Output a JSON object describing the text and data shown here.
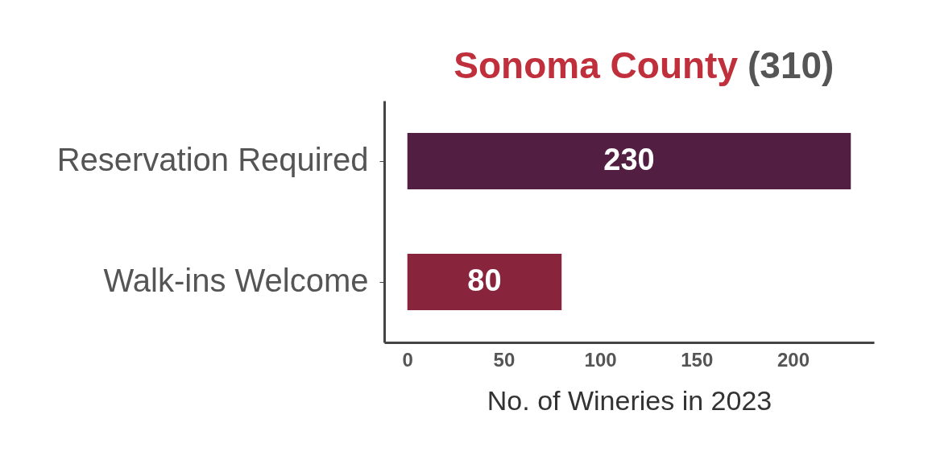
{
  "chart_data": {
    "type": "bar",
    "orientation": "horizontal",
    "title": "Sonoma County",
    "annotations": [
      "(310)"
    ],
    "categories": [
      "Reservation Required",
      "Walk-ins Welcome"
    ],
    "values": [
      230,
      80
    ],
    "colors": [
      "#521e42",
      "#88243c"
    ],
    "xlabel": "No. of Wineries in 2023",
    "xlim": [
      -12,
      242
    ],
    "xticks": [
      0,
      50,
      100,
      150,
      200
    ],
    "data_labels": true,
    "grid": false
  }
}
